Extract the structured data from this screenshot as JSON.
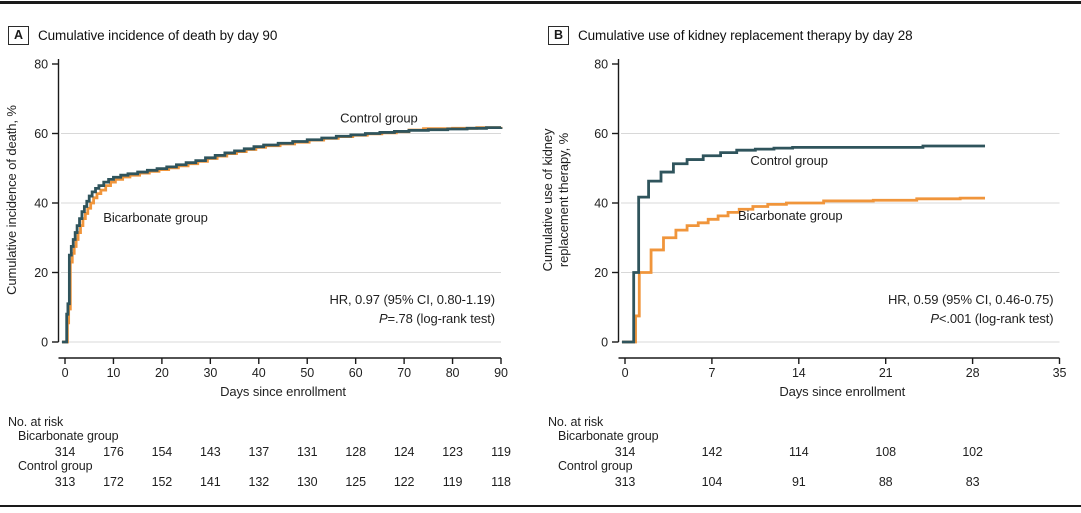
{
  "panels": [
    {
      "label": "A",
      "title": "Cumulative incidence of death by day 90"
    },
    {
      "label": "B",
      "title": "Cumulative use of kidney replacement therapy by day 28"
    }
  ],
  "style": {
    "control_color": "#2F545C",
    "bicarbonate_color": "#F0953B",
    "gridline_color": "#D8D8D8",
    "axis_color": "#1A1A1A",
    "text_color": "#1F1F1F"
  },
  "chart_data": [
    {
      "type": "line",
      "step": true,
      "panel": "A",
      "title": "Cumulative incidence of death by day 90",
      "xlabel": "Days since enrollment",
      "ylabel_lines": [
        "Cumulative incidence of death, %"
      ],
      "xlim": [
        0,
        90
      ],
      "ylim": [
        0,
        80
      ],
      "xticks": [
        0,
        10,
        20,
        30,
        40,
        50,
        60,
        70,
        80,
        90
      ],
      "yticks": [
        0,
        20,
        40,
        60,
        80
      ],
      "gridlines_y": [
        0,
        20,
        40,
        60
      ],
      "legend_position": "inline-labels",
      "series": [
        {
          "name": "Bicarbonate group",
          "color": "#F0953B",
          "label_pos": [
            7.9,
            34.5
          ],
          "points": [
            [
              0,
              0
            ],
            [
              0.5,
              5.5
            ],
            [
              0.75,
              9.5
            ],
            [
              1.1,
              23
            ],
            [
              1.5,
              25.5
            ],
            [
              1.9,
              27.5
            ],
            [
              2.3,
              29.5
            ],
            [
              2.7,
              31.5
            ],
            [
              3.2,
              33.5
            ],
            [
              3.7,
              35.5
            ],
            [
              4.2,
              37
            ],
            [
              4.7,
              38.5
            ],
            [
              5.3,
              40
            ],
            [
              5.9,
              41.5
            ],
            [
              6.6,
              42.7
            ],
            [
              7.4,
              43.7
            ],
            [
              8.4,
              45
            ],
            [
              9.4,
              46
            ],
            [
              10.4,
              46.8
            ],
            [
              11.9,
              47.5
            ],
            [
              13.4,
              48
            ],
            [
              15.4,
              48.6
            ],
            [
              17.4,
              49.1
            ],
            [
              19.4,
              49.6
            ],
            [
              21.4,
              50.1
            ],
            [
              23.4,
              50.7
            ],
            [
              25.4,
              51.3
            ],
            [
              27.4,
              52
            ],
            [
              29.4,
              52.8
            ],
            [
              31.4,
              53.5
            ],
            [
              33.4,
              54.2
            ],
            [
              35.4,
              54.8
            ],
            [
              37.4,
              55.4
            ],
            [
              39.4,
              56
            ],
            [
              41.4,
              56.5
            ],
            [
              44.4,
              57
            ],
            [
              47.4,
              57.5
            ],
            [
              50.4,
              58.1
            ],
            [
              53.4,
              58.6
            ],
            [
              56.4,
              59.1
            ],
            [
              59.4,
              59.5
            ],
            [
              62.4,
              59.9
            ],
            [
              65.4,
              60.2
            ],
            [
              68.4,
              60.5
            ],
            [
              71,
              61
            ],
            [
              74,
              61.4
            ],
            [
              80,
              61.5
            ],
            [
              85,
              61.7
            ],
            [
              90,
              61.9
            ]
          ]
        },
        {
          "name": "Control group",
          "color": "#2F545C",
          "label_pos": [
            56.8,
            63.2
          ],
          "points": [
            [
              0,
              0
            ],
            [
              0.35,
              8
            ],
            [
              0.6,
              11
            ],
            [
              0.9,
              25
            ],
            [
              1.3,
              27.5
            ],
            [
              1.7,
              29.5
            ],
            [
              2.1,
              31.5
            ],
            [
              2.5,
              33.5
            ],
            [
              3,
              35.5
            ],
            [
              3.5,
              37.5
            ],
            [
              4,
              39
            ],
            [
              4.5,
              40.5
            ],
            [
              5,
              42
            ],
            [
              5.6,
              43.2
            ],
            [
              6.3,
              44.2
            ],
            [
              7,
              45
            ],
            [
              8,
              46
            ],
            [
              9,
              46.8
            ],
            [
              10,
              47.4
            ],
            [
              11.5,
              48
            ],
            [
              13,
              48.4
            ],
            [
              15,
              48.9
            ],
            [
              17,
              49.4
            ],
            [
              19,
              49.9
            ],
            [
              21,
              50.4
            ],
            [
              23,
              51
            ],
            [
              25,
              51.6
            ],
            [
              27,
              52.2
            ],
            [
              29,
              53
            ],
            [
              31,
              53.7
            ],
            [
              33,
              54.4
            ],
            [
              35,
              55
            ],
            [
              37,
              55.6
            ],
            [
              39,
              56.2
            ],
            [
              41,
              56.7
            ],
            [
              44,
              57.2
            ],
            [
              47,
              57.7
            ],
            [
              50,
              58.2
            ],
            [
              53,
              58.7
            ],
            [
              56,
              59.2
            ],
            [
              59,
              59.6
            ],
            [
              62,
              60
            ],
            [
              65,
              60.3
            ],
            [
              68,
              60.6
            ],
            [
              71,
              60.9
            ],
            [
              75,
              61.1
            ],
            [
              79,
              61.3
            ],
            [
              83,
              61.5
            ],
            [
              87,
              61.7
            ],
            [
              90,
              61.8
            ]
          ]
        }
      ],
      "annotation": {
        "line1": "HR, 0.97 (95% CI, 0.80-1.19)",
        "p_italic": "P",
        "line2_rest": "=.78 (log-rank test)"
      },
      "risk_table": {
        "header": "No. at risk",
        "days": [
          0,
          10,
          20,
          30,
          40,
          50,
          60,
          70,
          80,
          90
        ],
        "groups": [
          {
            "name": "Bicarbonate group",
            "counts": [
              314,
              176,
              154,
              143,
              137,
              131,
              128,
              124,
              123,
              119
            ]
          },
          {
            "name": "Control group",
            "counts": [
              313,
              172,
              152,
              141,
              132,
              130,
              125,
              122,
              119,
              118
            ]
          }
        ]
      }
    },
    {
      "type": "line",
      "step": true,
      "panel": "B",
      "title": "Cumulative use of kidney replacement therapy by day 28",
      "xlabel": "Days since enrollment",
      "ylabel_lines": [
        "Cumulative use of kidney",
        "replacement therapy, %"
      ],
      "xlim": [
        0,
        35
      ],
      "ylim": [
        0,
        80
      ],
      "xticks": [
        0,
        7,
        14,
        21,
        28,
        35
      ],
      "yticks": [
        0,
        20,
        40,
        60,
        80
      ],
      "gridlines_y": [
        0,
        20,
        40,
        60
      ],
      "legend_position": "inline-labels",
      "series": [
        {
          "name": "Bicarbonate group",
          "color": "#F0953B",
          "label_pos": [
            9.1,
            35.1
          ],
          "points": [
            [
              0,
              0
            ],
            [
              0.85,
              7.5
            ],
            [
              1.15,
              20
            ],
            [
              2.1,
              26.5
            ],
            [
              3.1,
              30
            ],
            [
              4.1,
              32.2
            ],
            [
              5,
              33.5
            ],
            [
              5.9,
              34.3
            ],
            [
              6.7,
              35.3
            ],
            [
              7.5,
              36.3
            ],
            [
              8.3,
              37.3
            ],
            [
              9.2,
              38.2
            ],
            [
              10.3,
              39
            ],
            [
              11.5,
              39.6
            ],
            [
              13,
              40
            ],
            [
              16,
              40.6
            ],
            [
              20,
              40.8
            ],
            [
              23.5,
              41.2
            ],
            [
              27,
              41.4
            ],
            [
              29,
              41.4
            ]
          ]
        },
        {
          "name": "Control group",
          "color": "#2F545C",
          "label_pos": [
            10.1,
            50.9
          ],
          "points": [
            [
              0,
              0
            ],
            [
              0.7,
              20
            ],
            [
              1.1,
              41.7
            ],
            [
              1.9,
              46.3
            ],
            [
              2.9,
              48.9
            ],
            [
              3.9,
              51.3
            ],
            [
              5,
              52.5
            ],
            [
              6.3,
              53.6
            ],
            [
              7.7,
              54.5
            ],
            [
              9,
              55.2
            ],
            [
              10.5,
              55.5
            ],
            [
              12,
              55.8
            ],
            [
              13.5,
              56
            ],
            [
              24,
              56.4
            ],
            [
              29,
              56.4
            ]
          ]
        }
      ],
      "annotation": {
        "line1": "HR, 0.59 (95% CI, 0.46-0.75)",
        "p_italic": "P",
        "line2_rest": "<.001 (log-rank test)"
      },
      "risk_table": {
        "header": "No. at risk",
        "days": [
          0,
          7,
          14,
          21,
          28
        ],
        "groups": [
          {
            "name": "Bicarbonate group",
            "counts": [
              314,
              142,
              114,
              108,
              102
            ]
          },
          {
            "name": "Control group",
            "counts": [
              313,
              104,
              91,
              88,
              83
            ]
          }
        ]
      }
    }
  ]
}
